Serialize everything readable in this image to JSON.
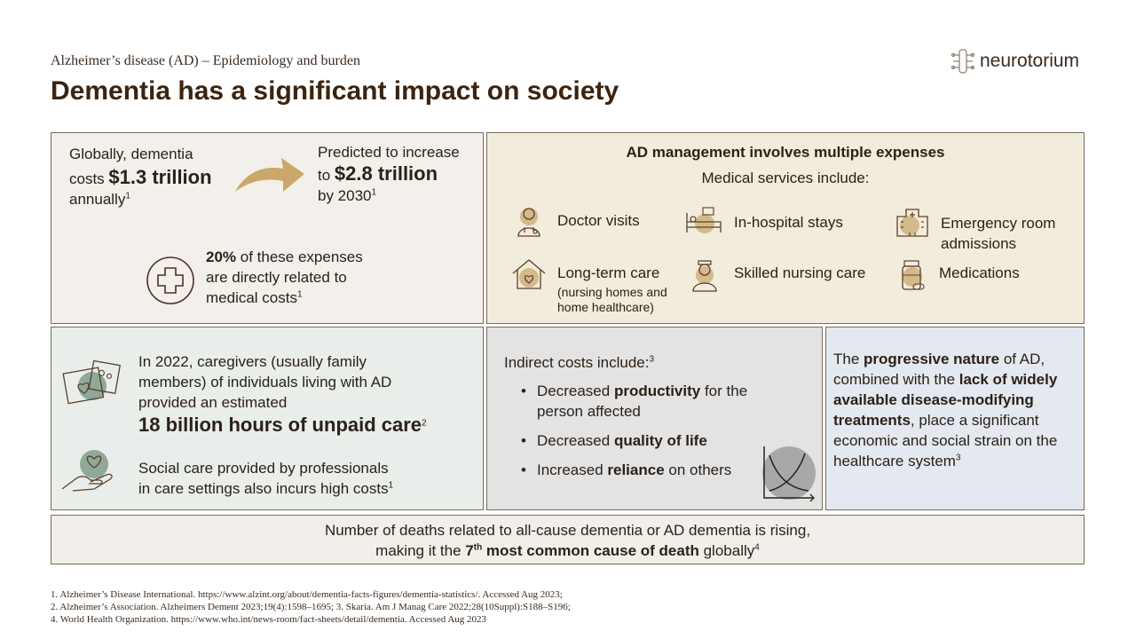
{
  "header": {
    "subtitle": "Alzheimer’s disease (AD) – Epidemiology and burden",
    "title": "Dementia has a significant impact on society",
    "logo_text": "neurotorium"
  },
  "global_costs": {
    "current_line1": "Globally, dementia",
    "current_pre": "costs ",
    "current_value": "$1.3 trillion",
    "current_post": "annually",
    "current_ref": "1",
    "predicted_line1": "Predicted to increase",
    "predicted_pre": "to ",
    "predicted_value": "$2.8 trillion",
    "predicted_post": "by 2030",
    "predicted_ref": "1",
    "medical_pct": "20%",
    "medical_text1": " of these expenses",
    "medical_text2": "are directly related to",
    "medical_text3": "medical costs",
    "medical_ref": "1"
  },
  "management": {
    "heading": "AD management involves multiple expenses",
    "subheading": "Medical services include:",
    "services": [
      {
        "label": "Doctor visits",
        "icon": "doctor-icon"
      },
      {
        "label": "In-hospital stays",
        "icon": "hospital-bed-icon"
      },
      {
        "label": "Emergency room admissions",
        "icon": "hospital-building-icon"
      },
      {
        "label": "Long-term care",
        "note": "(nursing homes and home healthcare)",
        "icon": "home-care-icon"
      },
      {
        "label": "Skilled nursing care",
        "icon": "nurse-icon"
      },
      {
        "label": "Medications",
        "icon": "medication-icon"
      }
    ]
  },
  "caregivers": {
    "text1": "In 2022, caregivers (usually family",
    "text2": "members) of individuals living with AD",
    "text3": "provided an estimated",
    "highlight": "18 billion hours of unpaid care",
    "highlight_ref": "2",
    "social1": "Social care provided by professionals",
    "social2": "in care settings also incurs high costs",
    "social_ref": "1"
  },
  "indirect": {
    "heading": "Indirect costs include:",
    "heading_ref": "3",
    "items": [
      {
        "pre": "Decreased ",
        "bold": "productivity",
        "post": " for the person affected"
      },
      {
        "pre": "Decreased ",
        "bold": "quality of life",
        "post": ""
      },
      {
        "pre": "Increased ",
        "bold": "reliance",
        "post": " on others"
      }
    ]
  },
  "progressive": {
    "t1": "The ",
    "b1": "progressive nature",
    "t2": " of AD, combined with the ",
    "b2": "lack of widely available disease-modifying treatments",
    "t3": ", place a significant economic and social strain on the healthcare system",
    "ref": "3"
  },
  "deaths": {
    "line1": "Number of deaths related to all-cause dementia or AD dementia is rising,",
    "pre": "making it the ",
    "rank": "7",
    "rank_suffix": "th",
    "bold": " most common cause of death",
    "post": " globally",
    "ref": "4"
  },
  "references": [
    "1. Alzheimer’s Disease International. https://www.alzint.org/about/dementia-facts-figures/dementia-statistics/. Accessed Aug 2023;",
    "2. Alzheimer’s Association. Alzheimers Dement 2023;19(4):1598–1695; 3. Skaria. Am J Manag Care 2022;28(10Suppl):S188–S196;",
    "4. World Health Organization. https://www.who.int/news-room/fact-sheets/detail/dementia. Accessed Aug 2023"
  ],
  "colors": {
    "title": "#3b2410",
    "accent_gold": "#c9a86a",
    "icon_green": "#8fa898",
    "icon_stroke": "#5a3f2a"
  }
}
